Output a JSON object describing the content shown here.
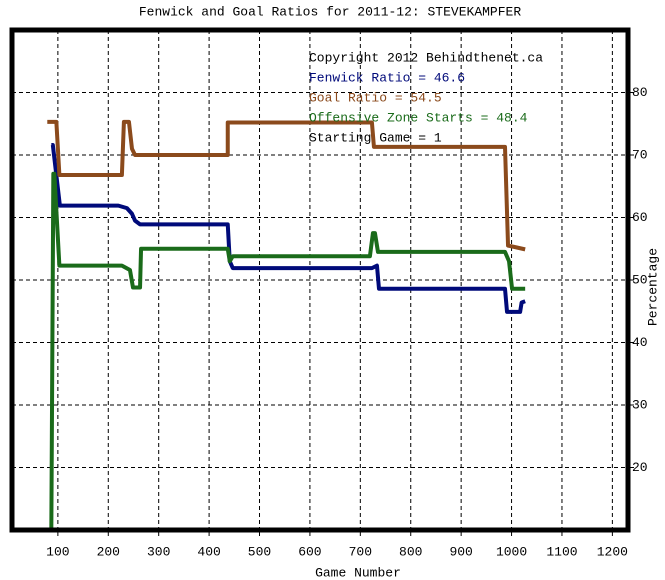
{
  "chart_data": {
    "type": "line",
    "title": "Fenwick and Goal Ratios for 2011-12: STEVEKAMPFER",
    "x_label": "Game Number",
    "y_label": "Percentage",
    "annotations": [
      "Copyright 2012 Behindthenet.ca",
      "Starting Game = 1"
    ],
    "xlim": [
      9,
      1231
    ],
    "ylim": [
      10,
      90
    ],
    "xticks": [
      100,
      200,
      300,
      400,
      500,
      600,
      700,
      800,
      900,
      1000,
      1100,
      1200
    ],
    "yticks": [
      20,
      30,
      40,
      50,
      60,
      70,
      80
    ],
    "grid": true,
    "series": [
      {
        "name": "Fenwick Ratio = 46.6",
        "color": "#000a7a",
        "x": [
          87,
          90,
          104,
          220,
          237,
          247,
          253,
          263,
          437,
          441,
          447,
          723,
          733,
          737,
          987,
          991,
          1017,
          1020,
          1027
        ],
        "values": [
          71.6,
          71.6,
          61.9,
          61.9,
          61.5,
          60.6,
          59.5,
          58.9,
          58.9,
          53,
          51.9,
          51.9,
          52.3,
          48.6,
          48.6,
          44.9,
          44.9,
          46.4,
          46.6
        ]
      },
      {
        "name": "Goal Ratio = 54.5",
        "color": "#8b4a1c",
        "x": [
          79,
          87,
          97,
          103,
          227,
          231,
          241,
          247,
          253,
          437,
          437,
          723,
          727,
          987,
          993,
          1005,
          1027
        ],
        "values": [
          75.3,
          75.3,
          75.3,
          66.8,
          66.8,
          75.3,
          75.3,
          71,
          70,
          70,
          75.2,
          75.2,
          71.3,
          71.3,
          55.5,
          55.3,
          54.9
        ]
      },
      {
        "name": "Offensive Zone Starts = 48.4",
        "color": "#1a6b1a",
        "x": [
          87,
          91,
          93,
          103,
          227,
          243,
          249,
          263,
          265,
          437,
          441,
          447,
          719,
          725,
          729,
          735,
          987,
          995,
          1001,
          1027
        ],
        "values": [
          10,
          67,
          67,
          52.3,
          52.3,
          51.6,
          48.8,
          48.8,
          55,
          55,
          53,
          53.8,
          53.8,
          57.5,
          57.5,
          54.5,
          54.5,
          53,
          48.6,
          48.6
        ]
      }
    ]
  }
}
